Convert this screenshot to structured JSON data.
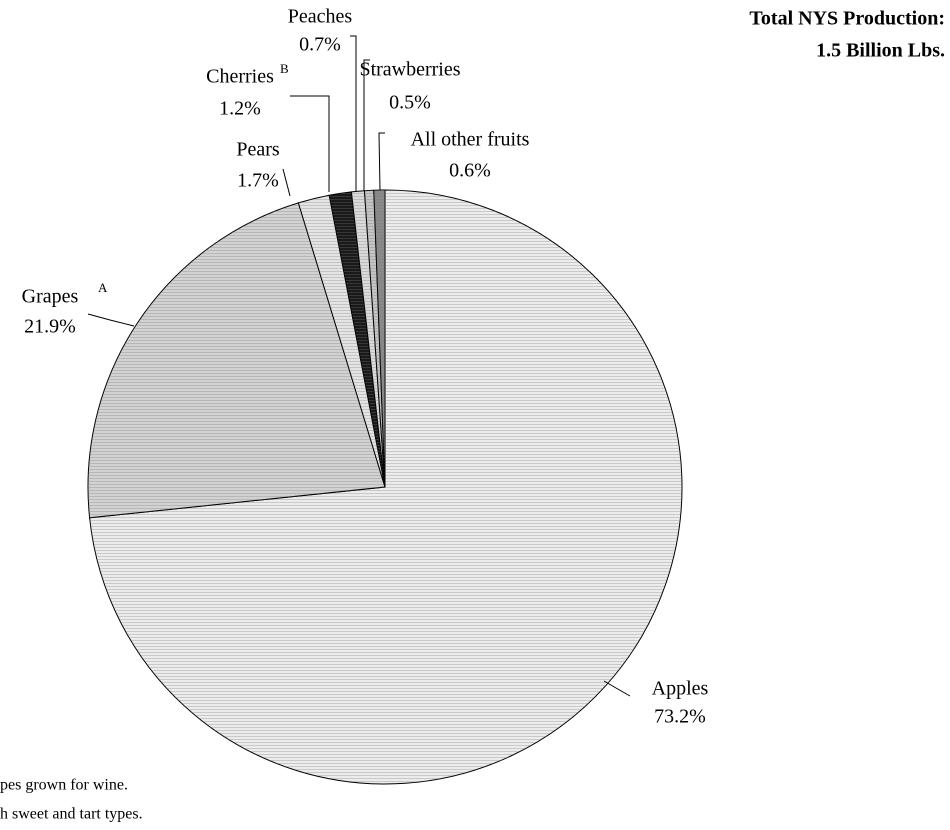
{
  "chart_data": {
    "type": "pie",
    "title": "Total NYS Production:",
    "subtitle": "1.5 Billion Lbs.",
    "categories": [
      "Apples",
      "Grapes",
      "Pears",
      "Cherries",
      "Peaches",
      "Strawberries",
      "All other fruits"
    ],
    "label_notes": [
      null,
      "A",
      null,
      "B",
      null,
      null,
      null
    ],
    "values": [
      73.2,
      21.9,
      1.7,
      1.2,
      0.7,
      0.5,
      0.6
    ],
    "value_labels": [
      "73.2%",
      "21.9%",
      "1.7%",
      "1.2%",
      "0.7%",
      "0.5%",
      "0.6%"
    ],
    "colors": [
      "#ececec",
      "#d2d2d2",
      "#e4e4e4",
      "#1a1a1a",
      "#dadada",
      "#c4c4c4",
      "#8a8a8a"
    ],
    "footnotes": [
      "pes grown for wine.",
      "h sweet and tart types."
    ]
  }
}
